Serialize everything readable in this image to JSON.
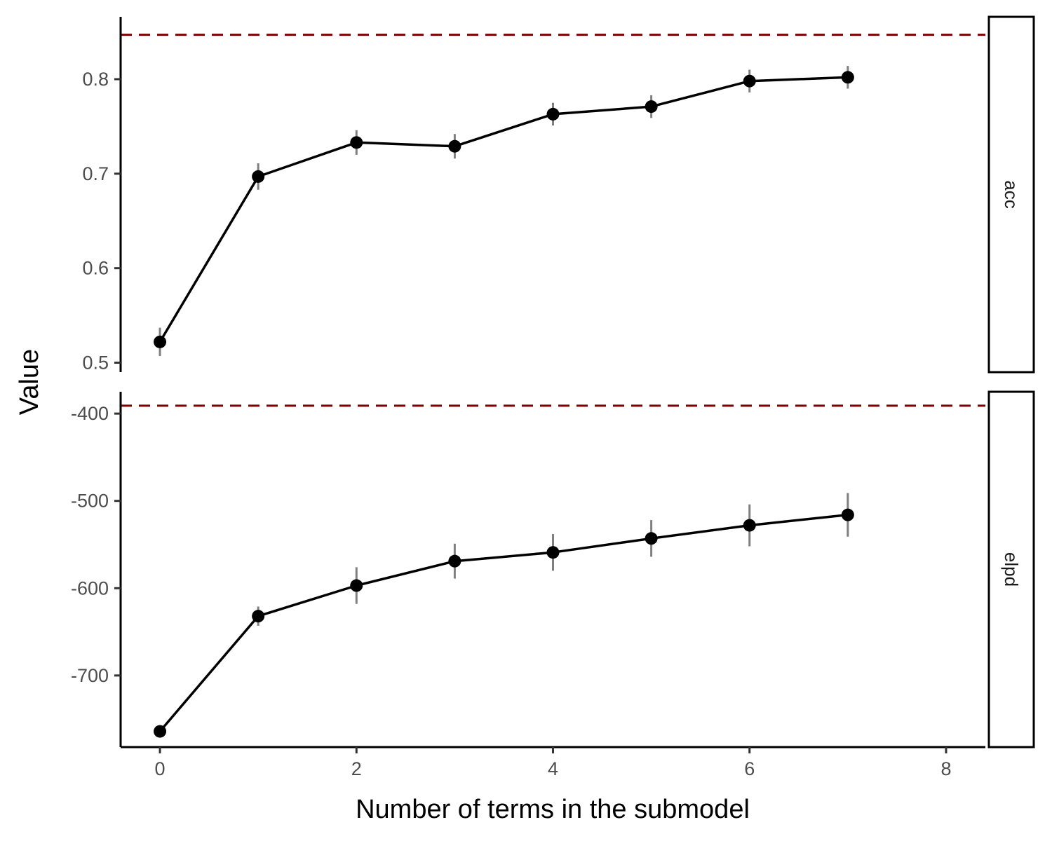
{
  "chart_data": {
    "type": "line",
    "xlabel": "Number of terms in the submodel",
    "ylabel": "Value",
    "x_ticks": [
      0,
      2,
      4,
      6,
      8
    ],
    "xlim": [
      -0.4,
      8.4
    ],
    "colors": {
      "line": "#000000",
      "point": "#000000",
      "errorbar": "#7f7f7f",
      "reference": "#7b0000",
      "strip_border": "#000000"
    },
    "grid": false,
    "panels": [
      {
        "strip": "acc",
        "ylim": [
          0.49,
          0.866
        ],
        "y_ticks": [
          0.5,
          0.6,
          0.7,
          0.8
        ],
        "y_tick_labels": [
          "0.5",
          "0.6",
          "0.7",
          "0.8"
        ],
        "reference_line": 0.847,
        "x": [
          0,
          1,
          2,
          3,
          4,
          5,
          6,
          7
        ],
        "y": [
          0.522,
          0.697,
          0.733,
          0.729,
          0.763,
          0.771,
          0.798,
          0.802
        ],
        "lower": [
          0.507,
          0.683,
          0.72,
          0.716,
          0.751,
          0.759,
          0.786,
          0.79
        ],
        "upper": [
          0.537,
          0.711,
          0.746,
          0.742,
          0.775,
          0.783,
          0.81,
          0.814
        ]
      },
      {
        "strip": "elpd",
        "ylim": [
          -782,
          -375
        ],
        "y_ticks": [
          -400,
          -500,
          -600,
          -700
        ],
        "y_tick_labels": [
          "-400",
          "-500",
          "-600",
          "-700"
        ],
        "reference_line": -391,
        "x": [
          0,
          1,
          2,
          3,
          4,
          5,
          6,
          7
        ],
        "y": [
          -764,
          -632,
          -597,
          -569,
          -559,
          -543,
          -528,
          -516
        ],
        "lower": [
          -764,
          -643,
          -618,
          -589,
          -580,
          -564,
          -552,
          -541
        ],
        "upper": [
          -764,
          -621,
          -576,
          -549,
          -538,
          -522,
          -504,
          -491
        ]
      }
    ]
  }
}
